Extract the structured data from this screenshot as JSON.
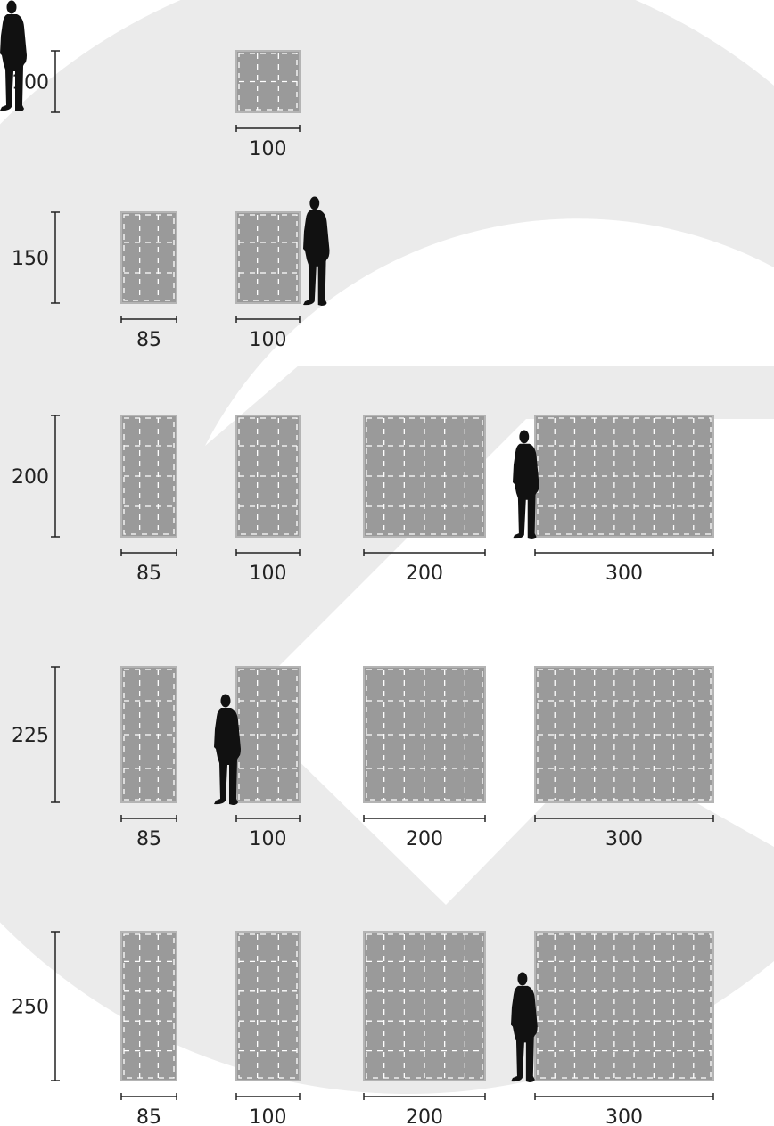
{
  "rows": [
    {
      "height_label": "100",
      "panels": [
        {
          "width_label": "100",
          "person": true
        }
      ]
    },
    {
      "height_label": "150",
      "panels": [
        {
          "width_label": "85"
        },
        {
          "width_label": "100",
          "person": true
        }
      ]
    },
    {
      "height_label": "200",
      "panels": [
        {
          "width_label": "85"
        },
        {
          "width_label": "100"
        },
        {
          "width_label": "200"
        },
        {
          "width_label": "300",
          "person": true
        }
      ]
    },
    {
      "height_label": "225",
      "panels": [
        {
          "width_label": "85"
        },
        {
          "width_label": "100",
          "person": true
        },
        {
          "width_label": "200"
        },
        {
          "width_label": "300"
        }
      ]
    },
    {
      "height_label": "250",
      "panels": [
        {
          "width_label": "85"
        },
        {
          "width_label": "100"
        },
        {
          "width_label": "200"
        },
        {
          "width_label": "300",
          "person": true
        }
      ]
    }
  ],
  "colors": {
    "background": "#ffffff",
    "watermark": "#ebebeb",
    "panel_fill": "#9a9a9a",
    "panel_border": "#b4b4b4",
    "panel_dash": "#ffffff",
    "silhouette": "#111111",
    "dimension_line": "#222222",
    "text": "#222222"
  },
  "icons": {
    "background_logo": "watermark-logo-icon",
    "person": "person-silhouette-icon"
  }
}
